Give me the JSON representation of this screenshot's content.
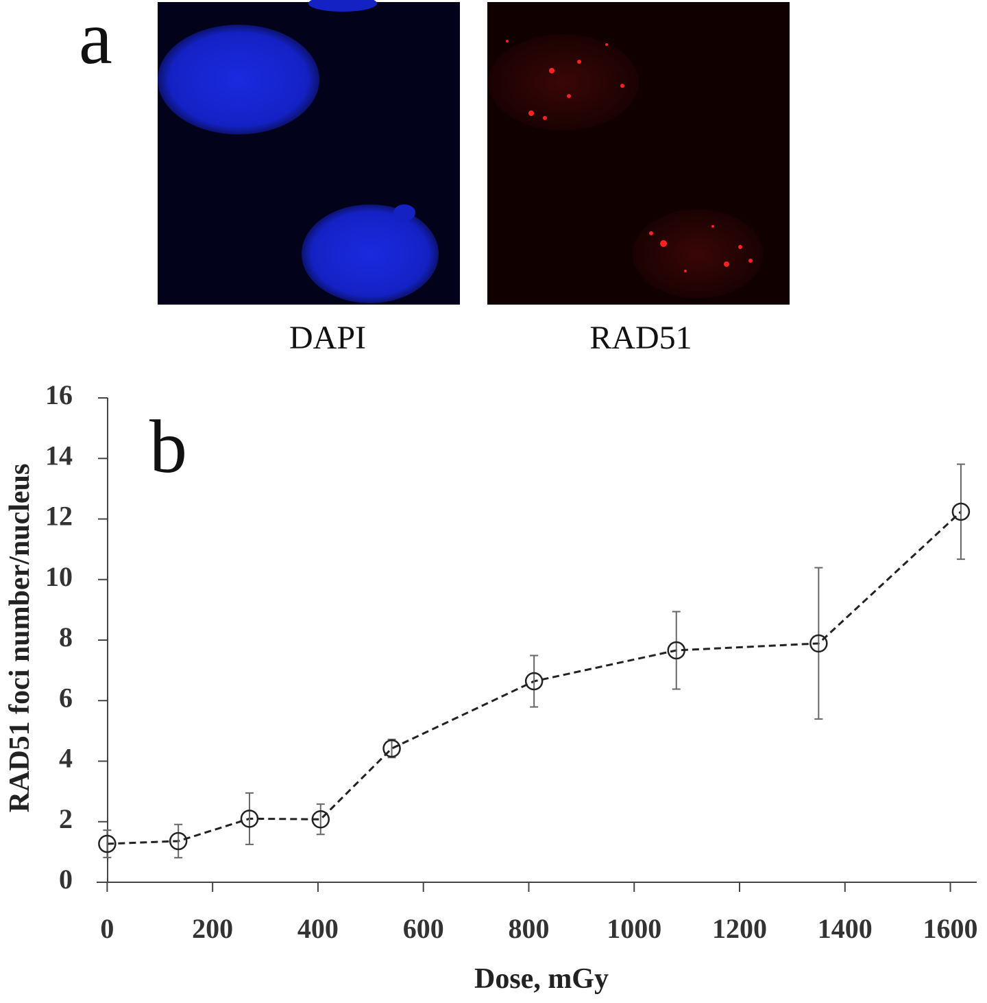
{
  "panel_labels": [
    "a",
    "b"
  ],
  "image_captions": [
    "DAPI",
    "RAD51"
  ],
  "chart_data": {
    "type": "line",
    "x_label": "Dose, mGy",
    "y_label": "RAD51 foci number/nucleus",
    "xlim": [
      -20,
      1650
    ],
    "ylim": [
      0,
      16
    ],
    "xticks": [
      0,
      200,
      400,
      600,
      800,
      1000,
      1200,
      1400,
      1600
    ],
    "yticks": [
      0,
      2,
      4,
      6,
      8,
      10,
      12,
      14,
      16
    ],
    "series": [
      {
        "color": "#222222",
        "x": [
          0,
          135,
          270,
          405,
          540,
          810,
          1080,
          1350,
          1620
        ],
        "values": [
          1.27,
          1.36,
          2.1,
          2.08,
          4.42,
          6.64,
          7.66,
          7.89,
          12.24
        ],
        "errors": [
          0.45,
          0.55,
          0.85,
          0.5,
          0.3,
          0.85,
          1.28,
          2.5,
          1.57
        ]
      }
    ]
  }
}
